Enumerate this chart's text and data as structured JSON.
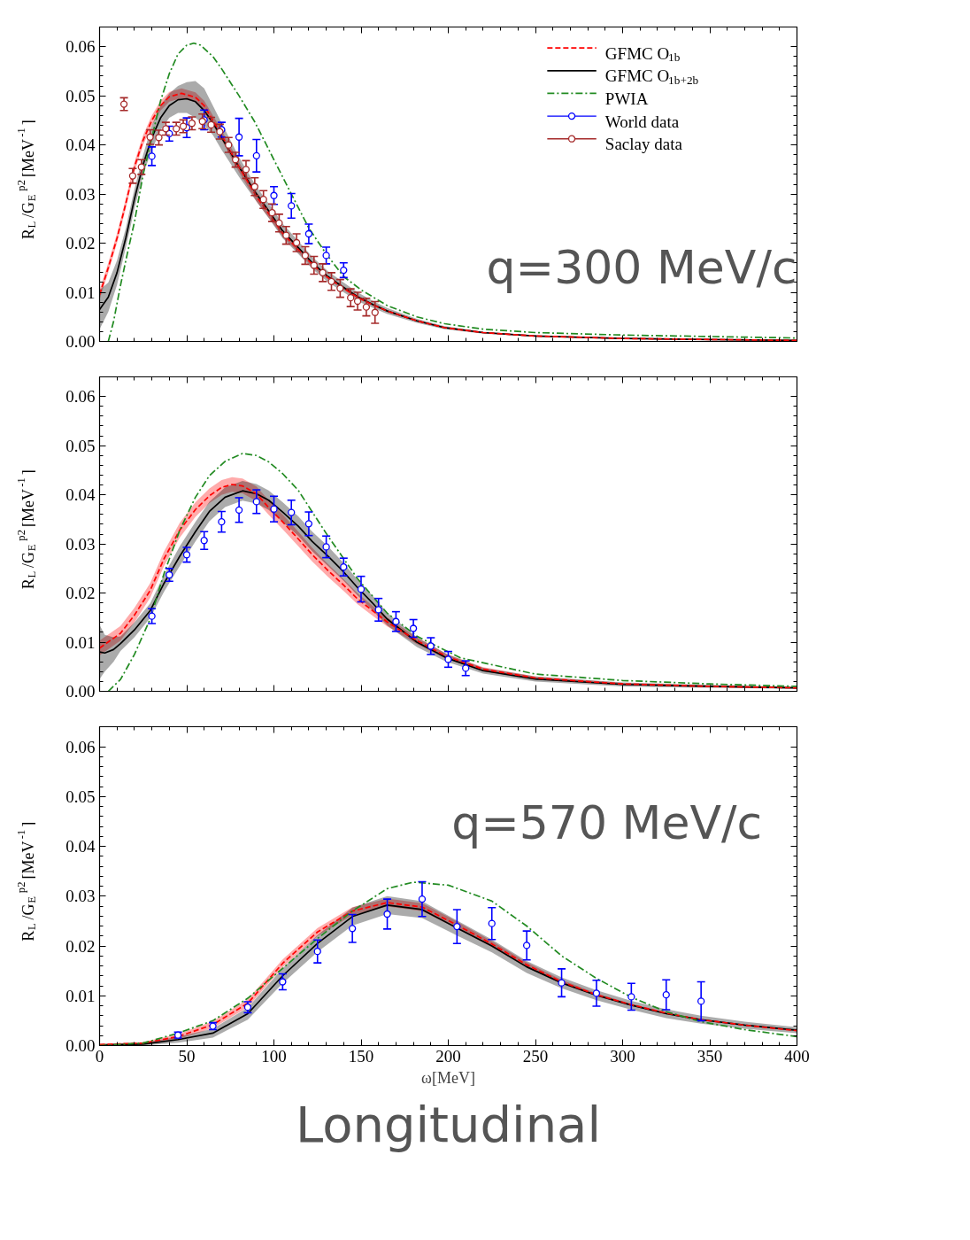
{
  "chart_data": [
    {
      "type": "line",
      "ylabel": "R$_{L}$/G$_{E}$$^{p2}$ [MeV$^{-1}$]",
      "xlim": [
        0,
        400
      ],
      "xticks": [
        0,
        50,
        100,
        150,
        200,
        250,
        300,
        350,
        400
      ],
      "ylim": [
        0,
        0.064
      ],
      "yticks": [
        {
          "value": 0,
          "label": "0.00"
        },
        {
          "value": 0.01,
          "label": "0.01"
        },
        {
          "value": 0.02,
          "label": "0.02"
        },
        {
          "value": 0.03,
          "label": "0.03"
        },
        {
          "value": 0.04,
          "label": "0.04"
        },
        {
          "value": 0.05,
          "label": "0.05"
        },
        {
          "value": 0.06,
          "label": "0.06"
        }
      ],
      "tick_labels": "y",
      "legend": "top right",
      "annotations": [
        "q=300 MeV/c"
      ],
      "series": [
        {
          "name": "GFMC O$_{1b}$",
          "color": "#ff0000",
          "line_style": "dashed",
          "marker": "none",
          "x": [
            0,
            5,
            10,
            15,
            20,
            25,
            30,
            35,
            40,
            47,
            55,
            60,
            65,
            70,
            80,
            90,
            97,
            105,
            114,
            122,
            131,
            140,
            148,
            157,
            165,
            182,
            198,
            220,
            250,
            300,
            350,
            400
          ],
          "values": [
            0.0095,
            0.015,
            0.021,
            0.028,
            0.0355,
            0.041,
            0.045,
            0.048,
            0.0498,
            0.0505,
            0.0497,
            0.048,
            0.045,
            0.042,
            0.0355,
            0.0295,
            0.026,
            0.022,
            0.0187,
            0.0157,
            0.013,
            0.0108,
            0.009,
            0.0074,
            0.0062,
            0.0042,
            0.0028,
            0.0018,
            0.0011,
            0.0006,
            0.0004,
            0.0002
          ],
          "lower": [
            0.0085,
            0.014,
            0.02,
            0.027,
            0.0345,
            0.04,
            0.044,
            0.047,
            0.0488,
            0.0495,
            0.0487,
            0.047,
            0.044,
            0.041,
            0.0345,
            0.0285,
            0.0252,
            0.0213,
            0.0181,
            0.0152,
            0.0126,
            0.0105,
            0.0087,
            0.0072,
            0.006,
            0.0041,
            0.0027,
            0.0017,
            0.001,
            0.0005,
            0.0003,
            0.0001
          ],
          "upper": [
            0.0105,
            0.016,
            0.022,
            0.029,
            0.0365,
            0.042,
            0.046,
            0.049,
            0.0508,
            0.0515,
            0.0507,
            0.049,
            0.046,
            0.043,
            0.0365,
            0.0305,
            0.0268,
            0.0227,
            0.0193,
            0.0162,
            0.0134,
            0.0111,
            0.0093,
            0.0076,
            0.0064,
            0.0043,
            0.0029,
            0.0019,
            0.0012,
            0.0007,
            0.0005,
            0.0003
          ]
        },
        {
          "name": "GFMC O$_{1b+2b}$",
          "color": "#000000",
          "line_style": "solid",
          "marker": "none",
          "x": [
            0,
            5,
            10,
            15,
            20,
            25,
            30,
            35,
            40,
            45,
            50,
            55,
            60,
            65,
            70,
            80,
            90,
            97,
            105,
            114,
            122,
            131,
            140,
            148,
            157,
            165,
            182,
            198,
            220,
            250,
            300,
            350,
            400
          ],
          "values": [
            0.0065,
            0.009,
            0.014,
            0.021,
            0.029,
            0.036,
            0.0415,
            0.0455,
            0.048,
            0.0492,
            0.0494,
            0.0488,
            0.047,
            0.0445,
            0.0415,
            0.0355,
            0.03,
            0.0266,
            0.0225,
            0.0191,
            0.016,
            0.0132,
            0.011,
            0.0091,
            0.0075,
            0.0062,
            0.0042,
            0.0028,
            0.0018,
            0.0011,
            0.0006,
            0.0004,
            0.0002
          ],
          "lower": [
            0.0025,
            0.006,
            0.0115,
            0.019,
            0.027,
            0.034,
            0.039,
            0.043,
            0.0455,
            0.0465,
            0.0465,
            0.0455,
            0.044,
            0.042,
            0.039,
            0.0335,
            0.0285,
            0.0251,
            0.021,
            0.0178,
            0.0148,
            0.0121,
            0.01,
            0.0082,
            0.0068,
            0.0056,
            0.0038,
            0.0025,
            0.0016,
            0.001,
            0.0005,
            0.0003,
            0.0001
          ],
          "upper": [
            0.0105,
            0.012,
            0.0165,
            0.023,
            0.031,
            0.038,
            0.044,
            0.048,
            0.0505,
            0.052,
            0.0528,
            0.053,
            0.0515,
            0.048,
            0.0445,
            0.0375,
            0.0315,
            0.0281,
            0.024,
            0.0204,
            0.0172,
            0.0143,
            0.012,
            0.01,
            0.0082,
            0.0068,
            0.0046,
            0.0031,
            0.002,
            0.0012,
            0.0007,
            0.0005,
            0.0003
          ]
        },
        {
          "name": "PWIA",
          "color": "#228b22",
          "line_style": "dashdot",
          "marker": "none",
          "x": [
            5,
            8,
            12,
            16,
            20,
            25,
            30,
            35,
            40,
            45,
            50,
            54,
            58,
            65,
            70,
            80,
            89,
            100,
            110,
            120,
            130,
            140,
            150,
            165,
            182,
            198,
            220,
            250,
            300,
            350,
            400
          ],
          "values": [
            0,
            0.004,
            0.0114,
            0.018,
            0.0243,
            0.034,
            0.0415,
            0.049,
            0.0545,
            0.0585,
            0.0603,
            0.0607,
            0.0603,
            0.058,
            0.0555,
            0.05,
            0.0447,
            0.037,
            0.03,
            0.0231,
            0.0178,
            0.0132,
            0.0105,
            0.0073,
            0.005,
            0.0036,
            0.0025,
            0.0018,
            0.0013,
            0.001,
            0.0007
          ]
        },
        {
          "name": "World data",
          "type": "scatter",
          "color": "#0000ff",
          "marker": "circle",
          "x": [
            30,
            40,
            50,
            60,
            70,
            80,
            90,
            100,
            110,
            120,
            130,
            140
          ],
          "values": [
            0.0377,
            0.0423,
            0.0435,
            0.0451,
            0.0431,
            0.0416,
            0.0378,
            0.0297,
            0.0276,
            0.0219,
            0.0175,
            0.0145
          ],
          "errors": [
            0.0019,
            0.0015,
            0.002,
            0.002,
            0.0015,
            0.0038,
            0.0033,
            0.0018,
            0.0025,
            0.002,
            0.0017,
            0.0015
          ]
        },
        {
          "name": "Saclay data",
          "type": "scatter",
          "color": "#a52a2a",
          "marker": "circle",
          "x": [
            14,
            19,
            24,
            29,
            34,
            38,
            44,
            48,
            53,
            59,
            64,
            69,
            74,
            78,
            84,
            89,
            94,
            99,
            103,
            107,
            113,
            118,
            123,
            128,
            133,
            138,
            144,
            148,
            153,
            158
          ],
          "values": [
            0.0483,
            0.0337,
            0.0355,
            0.0416,
            0.0415,
            0.0433,
            0.0433,
            0.0438,
            0.0444,
            0.0448,
            0.0441,
            0.0427,
            0.04,
            0.037,
            0.035,
            0.0315,
            0.0289,
            0.0262,
            0.0241,
            0.0216,
            0.0201,
            0.0175,
            0.0155,
            0.014,
            0.0122,
            0.0108,
            0.0089,
            0.0082,
            0.007,
            0.0059
          ],
          "errors": [
            0.0013,
            0.0015,
            0.0015,
            0.0015,
            0.0015,
            0.0013,
            0.0013,
            0.0013,
            0.0013,
            0.0015,
            0.0015,
            0.0015,
            0.0015,
            0.0015,
            0.0018,
            0.0018,
            0.0018,
            0.0018,
            0.0018,
            0.0018,
            0.0018,
            0.0018,
            0.0018,
            0.0018,
            0.0018,
            0.0018,
            0.0018,
            0.0018,
            0.0018,
            0.0022
          ]
        }
      ]
    },
    {
      "type": "line",
      "ylabel": "R$_{L}$/G$_{E}$$^{p2}$ [MeV$^{-1}$]",
      "xlim": [
        0,
        400
      ],
      "xticks": [
        0,
        50,
        100,
        150,
        200,
        250,
        300,
        350,
        400
      ],
      "ylim": [
        0,
        0.064
      ],
      "yticks": [
        {
          "value": 0,
          "label": "0.00"
        },
        {
          "value": 0.01,
          "label": "0.01"
        },
        {
          "value": 0.02,
          "label": "0.02"
        },
        {
          "value": 0.03,
          "label": "0.03"
        },
        {
          "value": 0.04,
          "label": "0.04"
        },
        {
          "value": 0.05,
          "label": "0.05"
        },
        {
          "value": 0.06,
          "label": "0.06"
        }
      ],
      "tick_labels": "y",
      "series": [
        {
          "color": "#ff0000",
          "line_style": "dashed",
          "marker": "none",
          "x": [
            0,
            12,
            20,
            29,
            37,
            46,
            55,
            63,
            70,
            76,
            82,
            90,
            97,
            105,
            114,
            122,
            131,
            140,
            148,
            157,
            165,
            182,
            199,
            220,
            250,
            300,
            350,
            400
          ],
          "values": [
            0.0088,
            0.0118,
            0.0155,
            0.0205,
            0.027,
            0.0328,
            0.037,
            0.0398,
            0.0415,
            0.0421,
            0.0418,
            0.0402,
            0.0374,
            0.0345,
            0.031,
            0.0278,
            0.0246,
            0.0216,
            0.0188,
            0.0163,
            0.0141,
            0.0103,
            0.0071,
            0.0045,
            0.0027,
            0.0015,
            0.001,
            0.0007
          ],
          "lower": [
            0.0073,
            0.0103,
            0.014,
            0.019,
            0.0255,
            0.0313,
            0.0355,
            0.0383,
            0.04,
            0.0406,
            0.0403,
            0.0387,
            0.0359,
            0.033,
            0.0295,
            0.0264,
            0.0233,
            0.0204,
            0.0177,
            0.0153,
            0.0132,
            0.0096,
            0.0066,
            0.0041,
            0.0024,
            0.0013,
            0.0008,
            0.0006
          ],
          "upper": [
            0.0103,
            0.0133,
            0.017,
            0.022,
            0.0285,
            0.0343,
            0.0385,
            0.0413,
            0.043,
            0.0436,
            0.0433,
            0.0417,
            0.0389,
            0.036,
            0.0325,
            0.0292,
            0.0259,
            0.0228,
            0.0199,
            0.0173,
            0.015,
            0.011,
            0.0076,
            0.0049,
            0.003,
            0.0017,
            0.0012,
            0.0008
          ]
        },
        {
          "color": "#000000",
          "line_style": "solid",
          "marker": "none",
          "x": [
            0,
            3,
            8,
            12,
            20,
            29,
            37,
            46,
            55,
            63,
            72,
            82,
            90,
            97,
            105,
            114,
            122,
            131,
            140,
            148,
            157,
            165,
            182,
            199,
            220,
            250,
            300,
            350,
            400
          ],
          "values": [
            0.008,
            0.0078,
            0.0085,
            0.0097,
            0.0125,
            0.0164,
            0.022,
            0.0275,
            0.0325,
            0.0366,
            0.0395,
            0.0408,
            0.0402,
            0.0389,
            0.0365,
            0.0336,
            0.0305,
            0.0275,
            0.0243,
            0.0211,
            0.0178,
            0.0147,
            0.01,
            0.0068,
            0.0042,
            0.0025,
            0.0014,
            0.001,
            0.0007
          ],
          "lower": [
            0.0025,
            0.004,
            0.006,
            0.0082,
            0.011,
            0.0149,
            0.0203,
            0.0255,
            0.0305,
            0.0346,
            0.0375,
            0.0388,
            0.0382,
            0.0369,
            0.0345,
            0.0316,
            0.0285,
            0.0255,
            0.0225,
            0.0195,
            0.0163,
            0.0134,
            0.009,
            0.006,
            0.0036,
            0.002,
            0.001,
            0.0007,
            0.0005
          ],
          "upper": [
            0.0135,
            0.0115,
            0.011,
            0.0112,
            0.014,
            0.0179,
            0.0237,
            0.0295,
            0.0345,
            0.0386,
            0.0415,
            0.0428,
            0.0422,
            0.0409,
            0.0385,
            0.0356,
            0.0325,
            0.0295,
            0.0261,
            0.0227,
            0.0193,
            0.016,
            0.011,
            0.0076,
            0.0048,
            0.003,
            0.0018,
            0.0013,
            0.0009
          ]
        },
        {
          "color": "#228b22",
          "line_style": "dashdot",
          "marker": "none",
          "x": [
            5,
            12,
            20,
            29,
            37,
            46,
            55,
            63,
            72,
            82,
            90,
            97,
            105,
            114,
            122,
            131,
            140,
            148,
            157,
            165,
            182,
            207,
            250,
            300,
            350,
            400
          ],
          "values": [
            0,
            0.0024,
            0.0075,
            0.0147,
            0.024,
            0.0328,
            0.0395,
            0.0439,
            0.0468,
            0.0484,
            0.048,
            0.0467,
            0.0443,
            0.0409,
            0.0365,
            0.0316,
            0.027,
            0.0229,
            0.0192,
            0.0159,
            0.0112,
            0.0068,
            0.0035,
            0.0022,
            0.0015,
            0.001
          ]
        },
        {
          "type": "scatter",
          "color": "#0000ff",
          "marker": "circle",
          "x": [
            30,
            40,
            50,
            60,
            70,
            80,
            90,
            100,
            110,
            120,
            130,
            140,
            150,
            160,
            170,
            180,
            190,
            200,
            210
          ],
          "values": [
            0.0153,
            0.0237,
            0.0278,
            0.0307,
            0.0345,
            0.0369,
            0.0386,
            0.0371,
            0.0364,
            0.0341,
            0.0294,
            0.0253,
            0.0208,
            0.0166,
            0.0142,
            0.0128,
            0.0092,
            0.0065,
            0.0047
          ],
          "errors": [
            0.0015,
            0.0013,
            0.0015,
            0.0018,
            0.0021,
            0.0025,
            0.0024,
            0.0026,
            0.0025,
            0.0024,
            0.0022,
            0.0018,
            0.0026,
            0.0023,
            0.002,
            0.0018,
            0.0017,
            0.0016,
            0.0015
          ]
        }
      ]
    },
    {
      "type": "line",
      "xlabel": "ω[MeV]",
      "ylabel": "R$_{L}$/G$_{E}$$^{p2}$ [MeV$^{-1}$]",
      "xlim": [
        0,
        400
      ],
      "xticks": [
        0,
        50,
        100,
        150,
        200,
        250,
        300,
        350,
        400
      ],
      "ylim": [
        0,
        0.064
      ],
      "yticks": [
        {
          "value": 0,
          "label": "0.00"
        },
        {
          "value": 0.01,
          "label": "0.01"
        },
        {
          "value": 0.02,
          "label": "0.02"
        },
        {
          "value": 0.03,
          "label": "0.03"
        },
        {
          "value": 0.04,
          "label": "0.04"
        },
        {
          "value": 0.05,
          "label": "0.05"
        },
        {
          "value": 0.06,
          "label": "0.06"
        }
      ],
      "annotations": [
        "q=570 MeV/c",
        "Longitudinal"
      ],
      "series": [
        {
          "color": "#ff0000",
          "line_style": "dashed",
          "marker": "none",
          "x": [
            0,
            25,
            45,
            65,
            85,
            105,
            125,
            145,
            165,
            185,
            205,
            225,
            245,
            265,
            285,
            305,
            325,
            345,
            370,
            400
          ],
          "values": [
            0.0002,
            0.0005,
            0.0018,
            0.0042,
            0.0085,
            0.0165,
            0.0228,
            0.027,
            0.0287,
            0.0278,
            0.0242,
            0.0204,
            0.0162,
            0.0128,
            0.0102,
            0.0082,
            0.0065,
            0.0052,
            0.0041,
            0.003
          ],
          "lower": [
            0.0001,
            0.0003,
            0.0013,
            0.0035,
            0.0077,
            0.0157,
            0.022,
            0.0262,
            0.0279,
            0.027,
            0.0235,
            0.0198,
            0.0157,
            0.0124,
            0.0099,
            0.008,
            0.0063,
            0.0051,
            0.004,
            0.0029
          ],
          "upper": [
            0.0003,
            0.0007,
            0.0023,
            0.0049,
            0.0093,
            0.0173,
            0.0236,
            0.0278,
            0.0295,
            0.0286,
            0.0249,
            0.021,
            0.0167,
            0.0132,
            0.0105,
            0.0084,
            0.0067,
            0.0053,
            0.0042,
            0.0031
          ]
        },
        {
          "color": "#000000",
          "line_style": "solid",
          "marker": "none",
          "x": [
            0,
            25,
            45,
            65,
            85,
            105,
            125,
            145,
            165,
            185,
            205,
            225,
            245,
            265,
            285,
            305,
            325,
            345,
            370,
            400
          ],
          "values": [
            0.0001,
            0.0003,
            0.0012,
            0.0025,
            0.0064,
            0.014,
            0.0205,
            0.0259,
            0.0282,
            0.0273,
            0.0236,
            0.02,
            0.0158,
            0.0126,
            0.0101,
            0.0081,
            0.0064,
            0.0052,
            0.0041,
            0.0031
          ],
          "lower": [
            0,
            0,
            0.0006,
            0.0016,
            0.0052,
            0.0125,
            0.0188,
            0.0241,
            0.0264,
            0.0256,
            0.0221,
            0.0187,
            0.0146,
            0.0115,
            0.0091,
            0.0072,
            0.0055,
            0.0044,
            0.0034,
            0.0025
          ],
          "upper": [
            0.0003,
            0.0006,
            0.0018,
            0.0034,
            0.0076,
            0.0155,
            0.0222,
            0.0277,
            0.03,
            0.029,
            0.0251,
            0.0213,
            0.017,
            0.0137,
            0.0111,
            0.009,
            0.0073,
            0.006,
            0.0048,
            0.0037
          ]
        },
        {
          "color": "#228b22",
          "line_style": "dashdot",
          "marker": "none",
          "x": [
            0,
            25,
            45,
            65,
            85,
            105,
            125,
            145,
            165,
            180,
            200,
            225,
            245,
            265,
            285,
            305,
            325,
            345,
            370,
            400
          ],
          "values": [
            0,
            0.0005,
            0.0025,
            0.005,
            0.0095,
            0.0155,
            0.0215,
            0.027,
            0.0315,
            0.0328,
            0.0322,
            0.029,
            0.024,
            0.018,
            0.0135,
            0.0097,
            0.0068,
            0.0048,
            0.0032,
            0.0018
          ]
        },
        {
          "type": "scatter",
          "color": "#0000ff",
          "marker": "circle",
          "x": [
            45,
            65,
            85,
            105,
            125,
            145,
            165,
            185,
            205,
            225,
            245,
            265,
            285,
            305,
            325,
            345
          ],
          "values": [
            0.0021,
            0.0039,
            0.0077,
            0.0128,
            0.0189,
            0.0235,
            0.0264,
            0.0294,
            0.0239,
            0.0245,
            0.0201,
            0.0126,
            0.0105,
            0.0098,
            0.0102,
            0.0089
          ],
          "errors": [
            0.0006,
            0.0007,
            0.0011,
            0.0016,
            0.0023,
            0.0028,
            0.003,
            0.0035,
            0.0034,
            0.0032,
            0.0029,
            0.0028,
            0.0026,
            0.0027,
            0.003,
            0.0039
          ]
        }
      ]
    }
  ]
}
